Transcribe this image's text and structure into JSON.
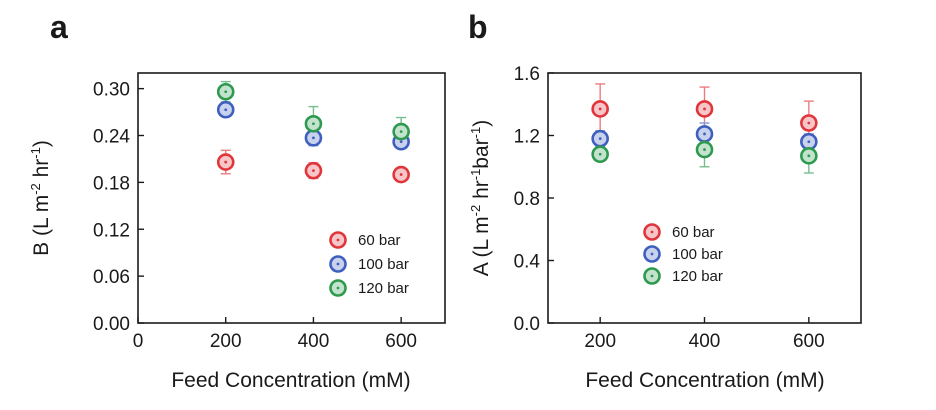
{
  "colors": {
    "60 bar": "#e0353b",
    "100 bar": "#3f5fbf",
    "120 bar": "#2e9a4f"
  },
  "chart_data": [
    {
      "panel": "a",
      "type": "scatter",
      "xlabel": "Feed Concentration (mM)",
      "ylabel_parts": [
        "B (L m",
        "-2",
        " hr",
        "-1",
        ")"
      ],
      "xlim": [
        0,
        700
      ],
      "ylim": [
        0,
        0.32
      ],
      "xticks": [
        0,
        200,
        400,
        600
      ],
      "xtick_labels": [
        "0",
        "200",
        "400",
        "600"
      ],
      "yticks": [
        0,
        0.06,
        0.12,
        0.18,
        0.24,
        0.3
      ],
      "ytick_labels": [
        "0.00",
        "0.06",
        "0.12",
        "0.18",
        "0.24",
        "0.30"
      ],
      "legend_position": "bottom-right",
      "series": [
        {
          "name": "60 bar",
          "x": [
            200,
            400,
            600
          ],
          "y": [
            0.206,
            0.195,
            0.19
          ],
          "err": [
            0.015,
            0.01,
            0.006
          ]
        },
        {
          "name": "100 bar",
          "x": [
            200,
            400,
            600
          ],
          "y": [
            0.273,
            0.237,
            0.232
          ],
          "err": [
            0.006,
            0.01,
            0.006
          ]
        },
        {
          "name": "120 bar",
          "x": [
            200,
            400,
            600
          ],
          "y": [
            0.296,
            0.255,
            0.245
          ],
          "err": [
            0.013,
            0.022,
            0.018
          ]
        }
      ]
    },
    {
      "panel": "b",
      "type": "scatter",
      "xlabel": "Feed Concentration (mM)",
      "ylabel_parts": [
        "A (L m",
        "-2",
        " hr",
        "-1",
        "bar",
        "-1",
        ")"
      ],
      "xlim": [
        100,
        700
      ],
      "ylim": [
        0,
        1.6
      ],
      "xticks": [
        200,
        400,
        600
      ],
      "xtick_labels": [
        "200",
        "400",
        "600"
      ],
      "yticks": [
        0,
        0.4,
        0.8,
        1.2,
        1.6
      ],
      "ytick_labels": [
        "0.0",
        "0.4",
        "0.8",
        "1.2",
        "1.6"
      ],
      "legend_position": "center",
      "series": [
        {
          "name": "60 bar",
          "x": [
            200,
            400,
            600
          ],
          "y": [
            1.37,
            1.37,
            1.28
          ],
          "err": [
            0.16,
            0.14,
            0.14
          ]
        },
        {
          "name": "100 bar",
          "x": [
            200,
            400,
            600
          ],
          "y": [
            1.18,
            1.21,
            1.16
          ],
          "err": [
            0.05,
            0.07,
            0.05
          ]
        },
        {
          "name": "120 bar",
          "x": [
            200,
            400,
            600
          ],
          "y": [
            1.08,
            1.11,
            1.07
          ],
          "err": [
            0.03,
            0.11,
            0.11
          ]
        }
      ]
    }
  ]
}
